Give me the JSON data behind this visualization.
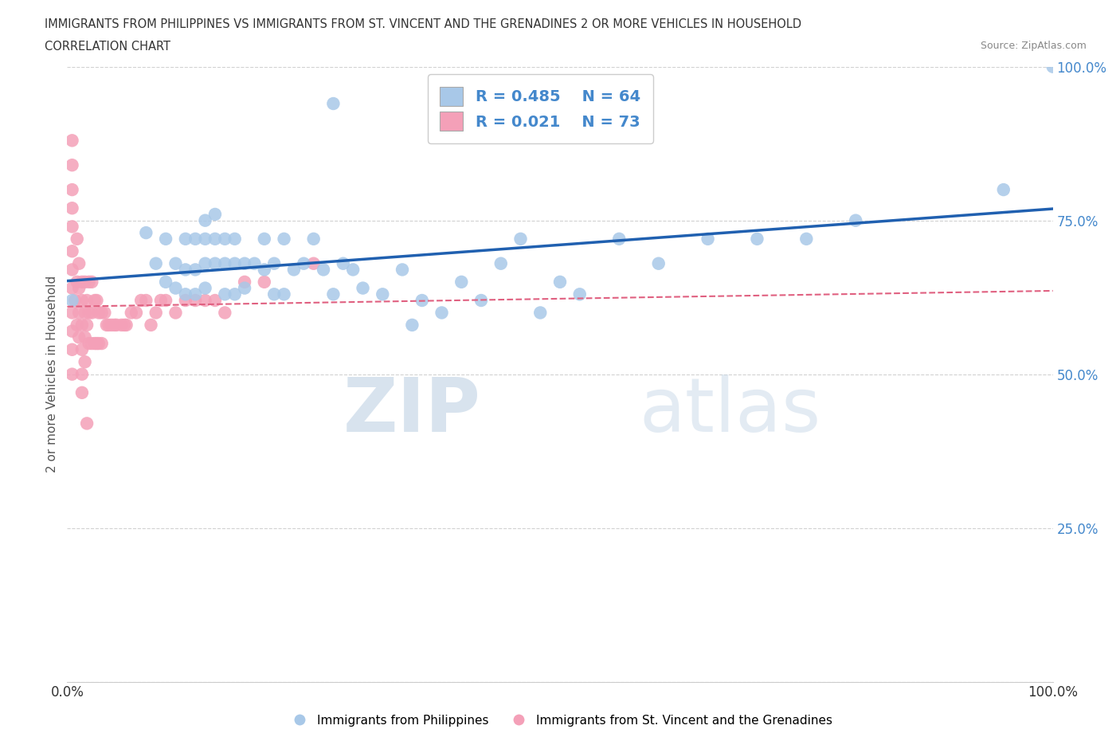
{
  "title_line1": "IMMIGRANTS FROM PHILIPPINES VS IMMIGRANTS FROM ST. VINCENT AND THE GRENADINES 2 OR MORE VEHICLES IN HOUSEHOLD",
  "title_line2": "CORRELATION CHART",
  "source_text": "Source: ZipAtlas.com",
  "ylabel": "2 or more Vehicles in Household",
  "watermark_zip": "ZIP",
  "watermark_atlas": "atlas",
  "xlim": [
    0.0,
    1.0
  ],
  "ylim": [
    0.0,
    1.0
  ],
  "x_tick_labels": [
    "0.0%",
    "100.0%"
  ],
  "x_ticks": [
    0.0,
    1.0
  ],
  "y_ticks": [
    0.0,
    0.25,
    0.5,
    0.75,
    1.0
  ],
  "y_tick_labels": [
    "",
    "25.0%",
    "50.0%",
    "75.0%",
    "100.0%"
  ],
  "blue_R": 0.485,
  "blue_N": 64,
  "pink_R": 0.021,
  "pink_N": 73,
  "blue_color": "#a8c8e8",
  "pink_color": "#f4a0b8",
  "blue_line_color": "#2060b0",
  "pink_line_color": "#e06080",
  "legend_text_color": "#4488cc",
  "grid_color": "#cccccc",
  "background_color": "#ffffff",
  "blue_scatter_x": [
    0.005,
    0.27,
    0.08,
    0.09,
    0.1,
    0.1,
    0.11,
    0.11,
    0.12,
    0.12,
    0.12,
    0.13,
    0.13,
    0.13,
    0.14,
    0.14,
    0.14,
    0.14,
    0.15,
    0.15,
    0.15,
    0.16,
    0.16,
    0.16,
    0.17,
    0.17,
    0.17,
    0.18,
    0.18,
    0.19,
    0.2,
    0.2,
    0.21,
    0.21,
    0.22,
    0.22,
    0.23,
    0.24,
    0.25,
    0.26,
    0.27,
    0.28,
    0.29,
    0.3,
    0.32,
    0.34,
    0.35,
    0.36,
    0.38,
    0.4,
    0.42,
    0.44,
    0.46,
    0.48,
    0.5,
    0.52,
    0.56,
    0.6,
    0.65,
    0.7,
    0.75,
    0.8,
    0.95,
    1.0
  ],
  "blue_scatter_y": [
    0.62,
    0.94,
    0.73,
    0.68,
    0.72,
    0.65,
    0.68,
    0.64,
    0.72,
    0.67,
    0.63,
    0.72,
    0.67,
    0.63,
    0.75,
    0.72,
    0.68,
    0.64,
    0.76,
    0.72,
    0.68,
    0.72,
    0.68,
    0.63,
    0.72,
    0.68,
    0.63,
    0.68,
    0.64,
    0.68,
    0.72,
    0.67,
    0.68,
    0.63,
    0.72,
    0.63,
    0.67,
    0.68,
    0.72,
    0.67,
    0.63,
    0.68,
    0.67,
    0.64,
    0.63,
    0.67,
    0.58,
    0.62,
    0.6,
    0.65,
    0.62,
    0.68,
    0.72,
    0.6,
    0.65,
    0.63,
    0.72,
    0.68,
    0.72,
    0.72,
    0.72,
    0.75,
    0.8,
    1.0
  ],
  "pink_scatter_x": [
    0.005,
    0.005,
    0.005,
    0.005,
    0.005,
    0.005,
    0.005,
    0.005,
    0.005,
    0.005,
    0.005,
    0.005,
    0.008,
    0.01,
    0.01,
    0.01,
    0.012,
    0.012,
    0.012,
    0.012,
    0.015,
    0.015,
    0.015,
    0.015,
    0.015,
    0.015,
    0.018,
    0.018,
    0.018,
    0.018,
    0.02,
    0.02,
    0.02,
    0.022,
    0.022,
    0.022,
    0.025,
    0.025,
    0.025,
    0.028,
    0.028,
    0.03,
    0.03,
    0.032,
    0.032,
    0.035,
    0.035,
    0.038,
    0.04,
    0.042,
    0.045,
    0.048,
    0.05,
    0.055,
    0.058,
    0.06,
    0.065,
    0.07,
    0.075,
    0.08,
    0.085,
    0.09,
    0.095,
    0.1,
    0.11,
    0.12,
    0.13,
    0.14,
    0.15,
    0.16,
    0.18,
    0.2,
    0.25
  ],
  "pink_scatter_y": [
    0.88,
    0.84,
    0.8,
    0.77,
    0.74,
    0.7,
    0.67,
    0.64,
    0.6,
    0.57,
    0.54,
    0.5,
    0.62,
    0.72,
    0.65,
    0.58,
    0.68,
    0.64,
    0.6,
    0.56,
    0.65,
    0.62,
    0.58,
    0.54,
    0.5,
    0.47,
    0.65,
    0.6,
    0.56,
    0.52,
    0.62,
    0.58,
    0.42,
    0.65,
    0.6,
    0.55,
    0.65,
    0.6,
    0.55,
    0.62,
    0.55,
    0.62,
    0.55,
    0.6,
    0.55,
    0.6,
    0.55,
    0.6,
    0.58,
    0.58,
    0.58,
    0.58,
    0.58,
    0.58,
    0.58,
    0.58,
    0.6,
    0.6,
    0.62,
    0.62,
    0.58,
    0.6,
    0.62,
    0.62,
    0.6,
    0.62,
    0.62,
    0.62,
    0.62,
    0.6,
    0.65,
    0.65,
    0.68
  ]
}
